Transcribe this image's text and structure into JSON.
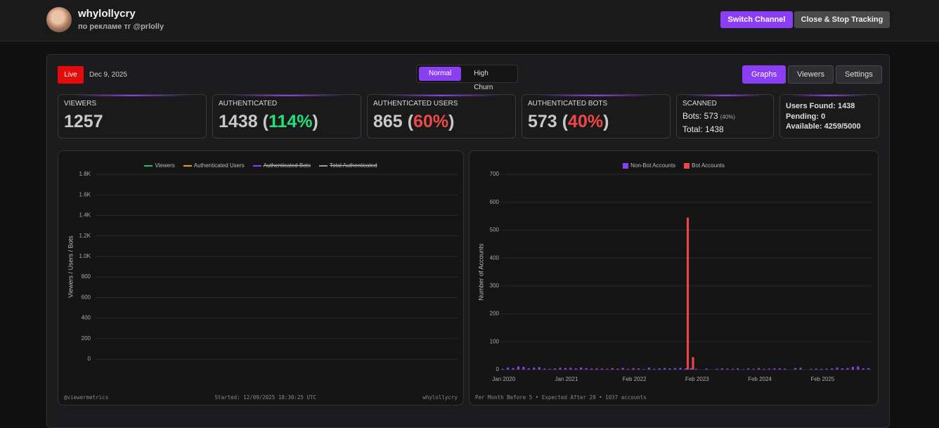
{
  "header": {
    "channel": "whylollycry",
    "subtitle": "по рекламе тг @prlolly",
    "buttons": [
      "Switch Channel",
      "Close & Stop Tracking"
    ]
  },
  "toolbar": {
    "status": "Live",
    "date": "Dec 9, 2025",
    "modes": [
      "Normal",
      "High Churn"
    ],
    "active_mode": 0,
    "tabs": [
      "Graphs",
      "Viewers",
      "Settings"
    ],
    "active_tab": 0
  },
  "stats": [
    {
      "label": "VIEWERS",
      "value": "1257"
    },
    {
      "label": "AUTHENTICATED",
      "value": "1438",
      "percent": [
        "(",
        "114%",
        ")"
      ],
      "percent_color": "#22e07a"
    },
    {
      "label": "AUTHENTICATED USERS",
      "value": "865",
      "percent": [
        "(",
        "60%",
        ")"
      ],
      "percent_color": "#f04747"
    },
    {
      "label": "AUTHENTICATED BOTS",
      "value": "573",
      "percent": [
        "(",
        "40%",
        ")"
      ],
      "percent_color": "#f04747"
    }
  ],
  "scanned": {
    "label": "SCANNED",
    "bots": "Bots: 573",
    "bots_percent": "(40%)",
    "total": "Total: 1438"
  },
  "capacity": [
    "Users Found: 1438",
    "Pending: 0",
    "Available: 4259/5000"
  ],
  "chart_data": [
    {
      "type": "line",
      "y_label": "Viewers / Users / Bots",
      "x": [],
      "series": [
        {
          "name": "Viewers",
          "color": "#22c55e",
          "values": [],
          "hidden": false
        },
        {
          "name": "Authenticated Users",
          "color": "#f59e0b",
          "values": [],
          "hidden": false
        },
        {
          "name": "Authenticated Bots",
          "color": "#8b3ff5",
          "values": [],
          "hidden": true
        },
        {
          "name": "Total Authenticated",
          "color": "#9a9a9a",
          "values": [],
          "hidden": true
        }
      ],
      "ylim": [
        0,
        1800
      ],
      "yticks": [
        0,
        200,
        400,
        600,
        800,
        {
          "value": 1000,
          "label": "1.0K"
        },
        {
          "value": 1200,
          "label": "1.2K"
        },
        {
          "value": 1400,
          "label": "1.4K"
        },
        {
          "value": 1600,
          "label": "1.6K"
        },
        {
          "value": 1800,
          "label": "1.8K"
        }
      ],
      "grid": true,
      "footer": [
        "@viewermetrics",
        "Started: 12/09/2025 18:30:25 UTC",
        "whylollycry"
      ]
    },
    {
      "type": "bar",
      "y_label": "Number of Accounts",
      "categories": [
        "Jan 2020",
        null,
        null,
        null,
        null,
        null,
        null,
        null,
        null,
        null,
        null,
        null,
        "Jan 2021",
        null,
        null,
        null,
        null,
        null,
        null,
        null,
        null,
        null,
        null,
        null,
        null,
        "Feb 2022",
        null,
        null,
        null,
        null,
        null,
        null,
        null,
        null,
        null,
        null,
        null,
        "Feb 2023",
        null,
        null,
        null,
        null,
        null,
        null,
        null,
        null,
        null,
        null,
        null,
        "Feb 2024",
        null,
        null,
        null,
        null,
        null,
        null,
        null,
        null,
        null,
        null,
        null,
        "Feb 2025",
        null,
        null,
        null,
        null,
        null,
        null,
        null,
        null,
        null
      ],
      "series": [
        {
          "name": "Non-Bot Accounts",
          "color": "#8b3ff5",
          "values": [
            3,
            8,
            6,
            12,
            10,
            5,
            8,
            9,
            4,
            3,
            5,
            7,
            6,
            7,
            5,
            8,
            6,
            4,
            5,
            4,
            3,
            6,
            4,
            7,
            3,
            6,
            5,
            2,
            8,
            3,
            5,
            6,
            5,
            6,
            7,
            5,
            6,
            3,
            0,
            4,
            0,
            3,
            5,
            4,
            3,
            5,
            2,
            5,
            3,
            6,
            3,
            4,
            5,
            5,
            4,
            0,
            6,
            7,
            0,
            3,
            4,
            3,
            4,
            5,
            8,
            5,
            6,
            10,
            12,
            5,
            6
          ]
        },
        {
          "name": "Bot Accounts",
          "color": "#f04545",
          "values": [
            0,
            0,
            0,
            0,
            0,
            0,
            0,
            0,
            0,
            0,
            0,
            0,
            0,
            0,
            0,
            0,
            0,
            0,
            0,
            0,
            0,
            0,
            0,
            0,
            0,
            0,
            0,
            0,
            0,
            0,
            0,
            0,
            0,
            0,
            0,
            545,
            45,
            0,
            0,
            0,
            0,
            0,
            0,
            0,
            0,
            0,
            0,
            0,
            0,
            0,
            0,
            0,
            0,
            0,
            0,
            0,
            0,
            0,
            0,
            0,
            0,
            0,
            0,
            0,
            0,
            0,
            0,
            0,
            0,
            0,
            0
          ]
        }
      ],
      "ylim": [
        0,
        700
      ],
      "yticks": [
        0,
        100,
        200,
        300,
        400,
        500,
        600,
        700
      ],
      "grid": true,
      "footer": [
        "Per Month Before 5 • Expected After 29 • 1037 accounts"
      ]
    }
  ]
}
